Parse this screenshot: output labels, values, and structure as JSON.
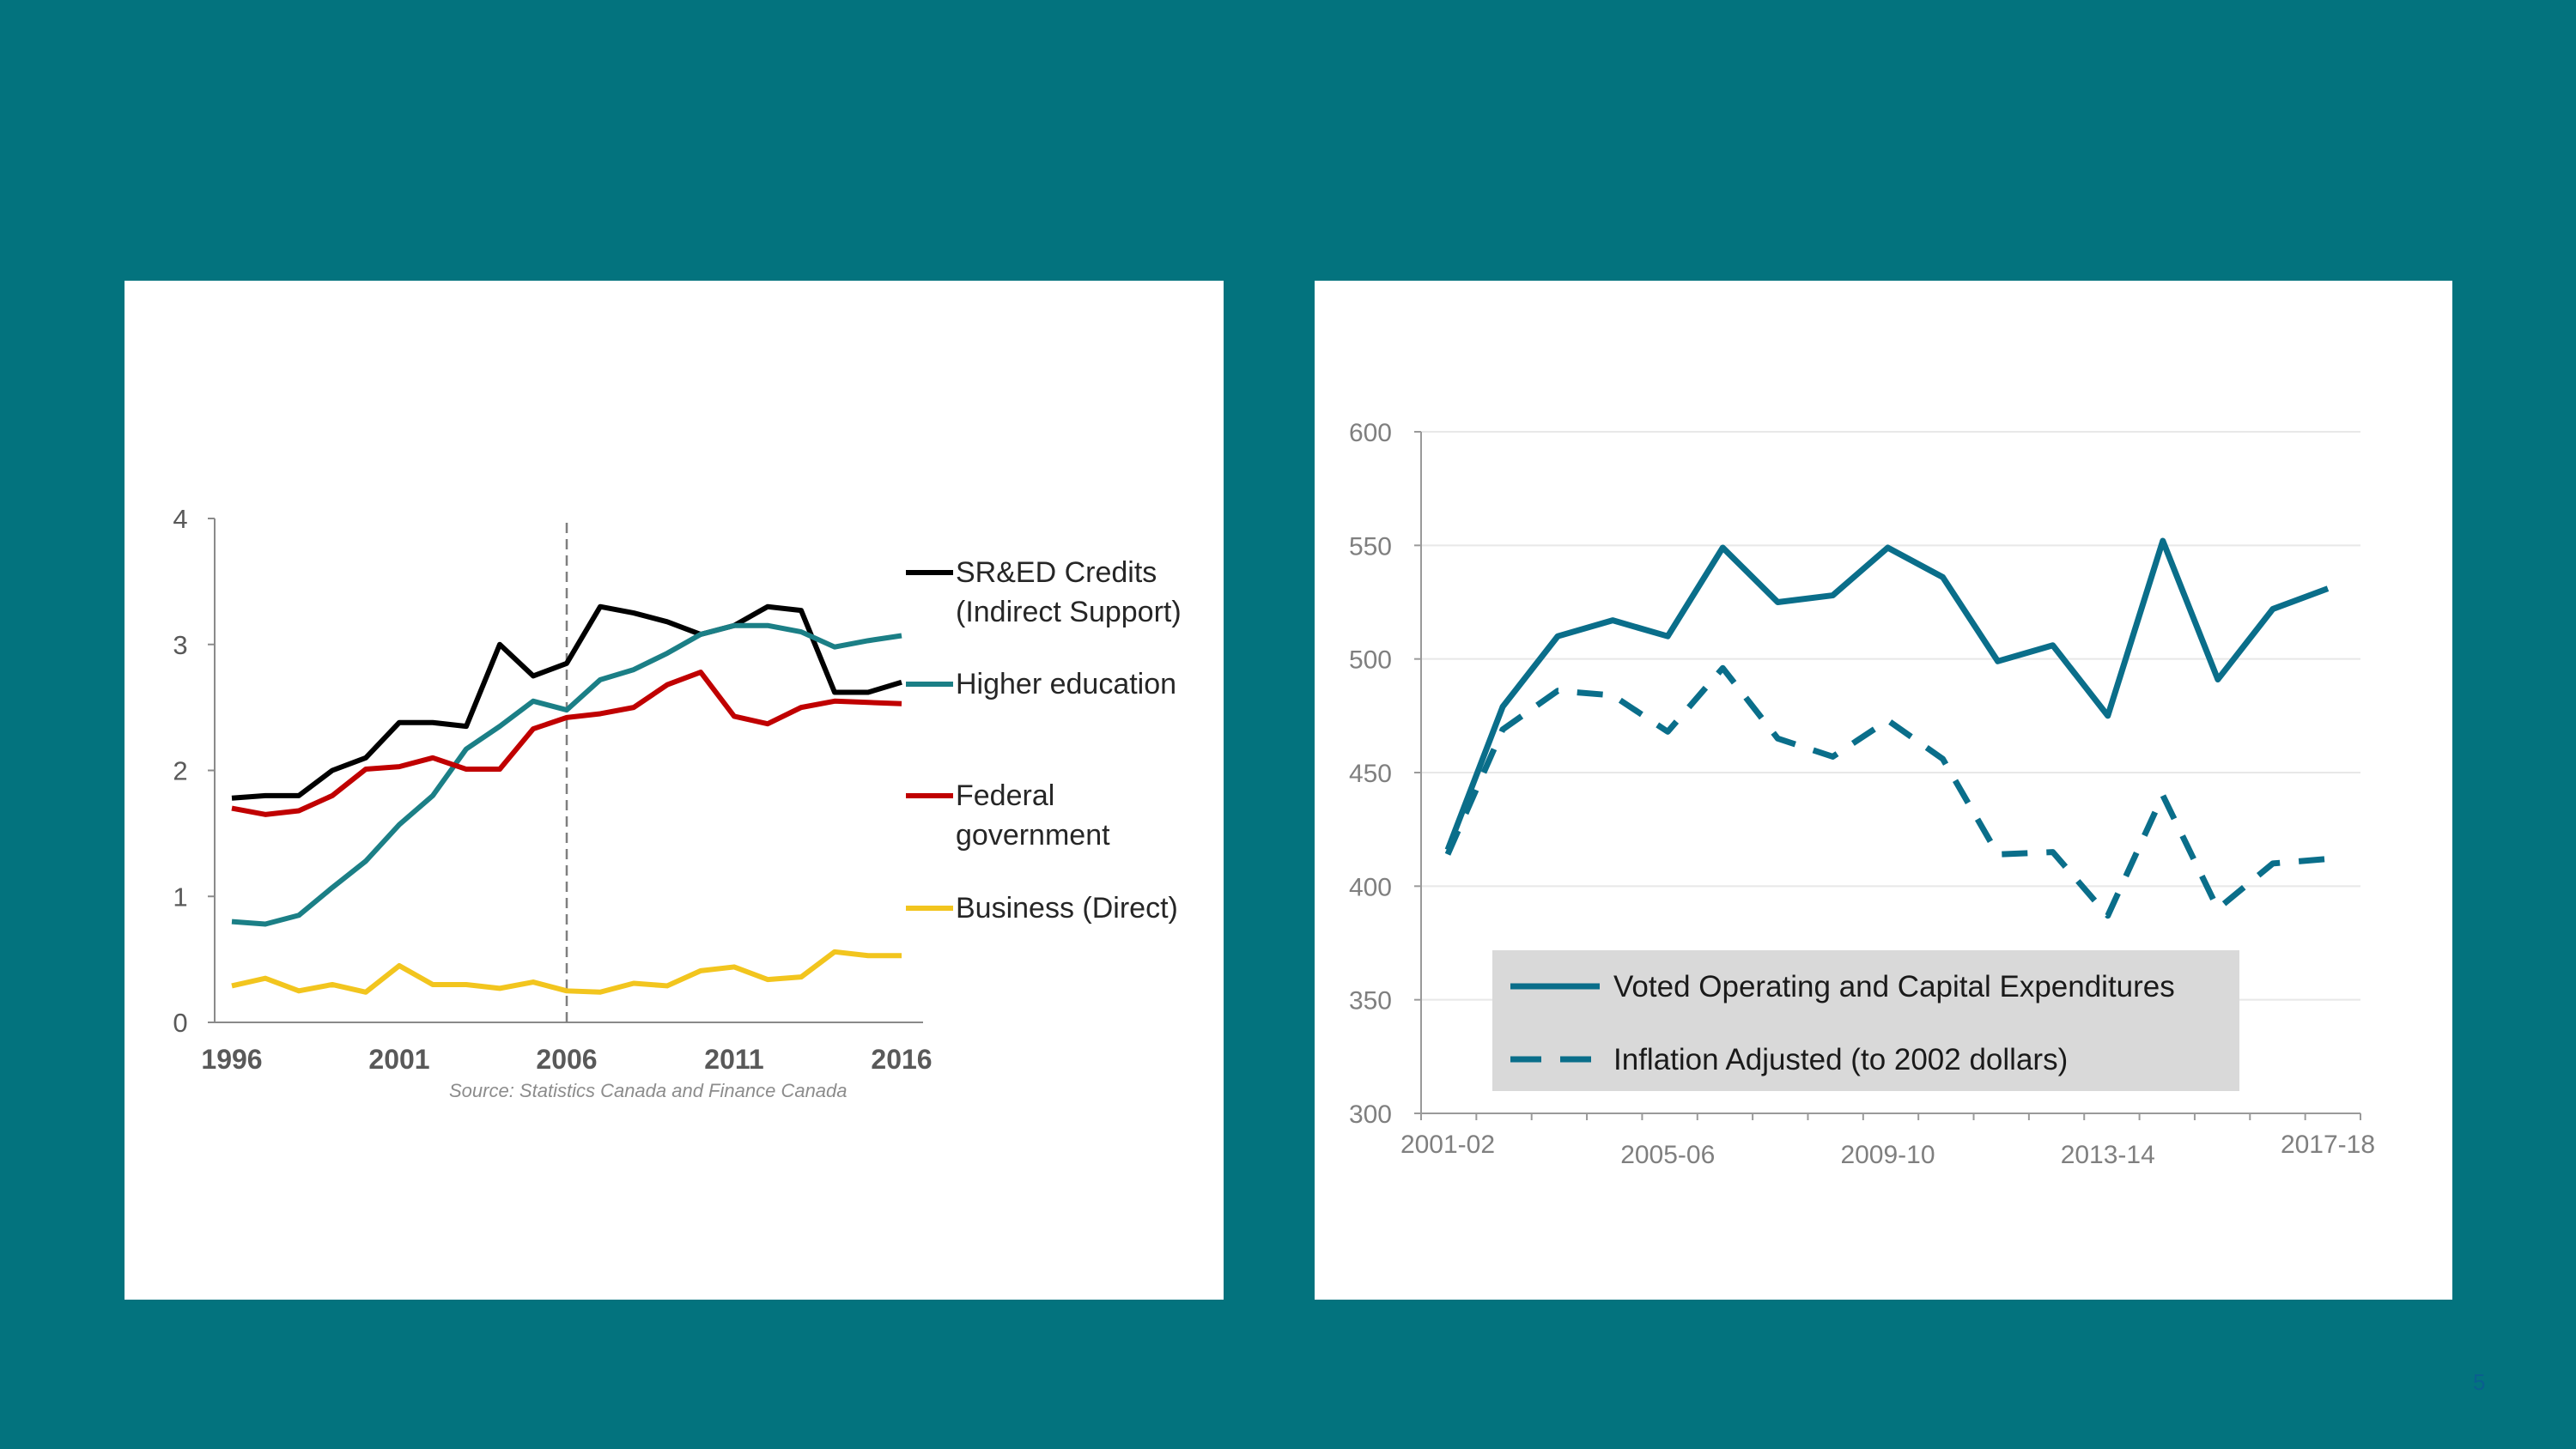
{
  "page_number": "5",
  "colors": {
    "background": "#03737E",
    "panel": "#FFFFFF",
    "sred": "#000000",
    "higher_ed": "#1B7F86",
    "federal": "#C00000",
    "business": "#F2C51E",
    "right_series": "#0A6E8A"
  },
  "chart_data": [
    {
      "type": "line",
      "title": "",
      "xlabel": "",
      "ylabel": "",
      "x": [
        1996,
        1997,
        1998,
        1999,
        2000,
        2001,
        2002,
        2003,
        2004,
        2005,
        2006,
        2007,
        2008,
        2009,
        2010,
        2011,
        2012,
        2013,
        2014,
        2015,
        2016
      ],
      "x_ticks": [
        "1996",
        "2001",
        "2006",
        "2011",
        "2016"
      ],
      "y_ticks": [
        "0",
        "1",
        "2",
        "3",
        "4"
      ],
      "ylim": [
        0,
        4
      ],
      "marker_line": {
        "x": 2006,
        "style": "dashed"
      },
      "source": "Source: Statistics Canada and Finance Canada",
      "legend_position": "right",
      "grid": false,
      "series": [
        {
          "name": "SR&ED Credits (Indirect Support)",
          "name_lines": [
            "SR&ED Credits",
            "(Indirect Support)"
          ],
          "color": "#000000",
          "values": [
            1.78,
            1.8,
            1.8,
            2.0,
            2.1,
            2.38,
            2.38,
            2.35,
            3.0,
            2.75,
            2.85,
            3.3,
            3.25,
            3.18,
            3.08,
            3.15,
            3.3,
            3.27,
            2.62,
            2.62,
            2.7
          ]
        },
        {
          "name": "Higher education",
          "name_lines": [
            "Higher education"
          ],
          "color": "#1B7F86",
          "values": [
            0.8,
            0.78,
            0.85,
            1.07,
            1.28,
            1.57,
            1.8,
            2.17,
            2.35,
            2.55,
            2.48,
            2.72,
            2.8,
            2.93,
            3.08,
            3.15,
            3.15,
            3.1,
            2.98,
            3.03,
            3.07
          ]
        },
        {
          "name": "Federal government",
          "name_lines": [
            "Federal",
            "government"
          ],
          "color": "#C00000",
          "values": [
            1.7,
            1.65,
            1.68,
            1.8,
            2.01,
            2.03,
            2.1,
            2.01,
            2.01,
            2.33,
            2.42,
            2.45,
            2.5,
            2.68,
            2.78,
            2.43,
            2.37,
            2.5,
            2.55,
            2.54,
            2.53
          ]
        },
        {
          "name": "Business (Direct)",
          "name_lines": [
            "Business (Direct)"
          ],
          "color": "#F2C51E",
          "values": [
            0.29,
            0.35,
            0.25,
            0.3,
            0.24,
            0.45,
            0.3,
            0.3,
            0.27,
            0.32,
            0.25,
            0.24,
            0.31,
            0.29,
            0.41,
            0.44,
            0.34,
            0.36,
            0.56,
            0.53,
            0.53
          ]
        }
      ]
    },
    {
      "type": "line",
      "title": "",
      "xlabel": "",
      "ylabel": "",
      "x": [
        "2001-02",
        "2002-03",
        "2003-04",
        "2004-05",
        "2005-06",
        "2006-07",
        "2007-08",
        "2008-09",
        "2009-10",
        "2010-11",
        "2011-12",
        "2012-13",
        "2013-14",
        "2014-15",
        "2015-16",
        "2016-17",
        "2017-18"
      ],
      "x_ticks": [
        "2001-02",
        "2005-06",
        "2009-10",
        "2013-14",
        "2017-18"
      ],
      "y_ticks": [
        "300",
        "350",
        "400",
        "450",
        "500",
        "550",
        "600"
      ],
      "ylim": [
        300,
        600
      ],
      "grid": true,
      "legend_position": "bottom-left",
      "series": [
        {
          "name": "Voted Operating and Capital Expenditures",
          "style": "solid",
          "values": [
            416,
            479,
            510,
            517,
            510,
            549,
            525,
            528,
            549,
            536,
            499,
            506,
            475,
            552,
            491,
            522,
            531
          ]
        },
        {
          "name": "Inflation Adjusted (to 2002 dollars)",
          "style": "dashed",
          "values": [
            414,
            469,
            486,
            484,
            468,
            496,
            465,
            457,
            473,
            456,
            414,
            415,
            387,
            440,
            390,
            410,
            412
          ]
        }
      ]
    }
  ]
}
